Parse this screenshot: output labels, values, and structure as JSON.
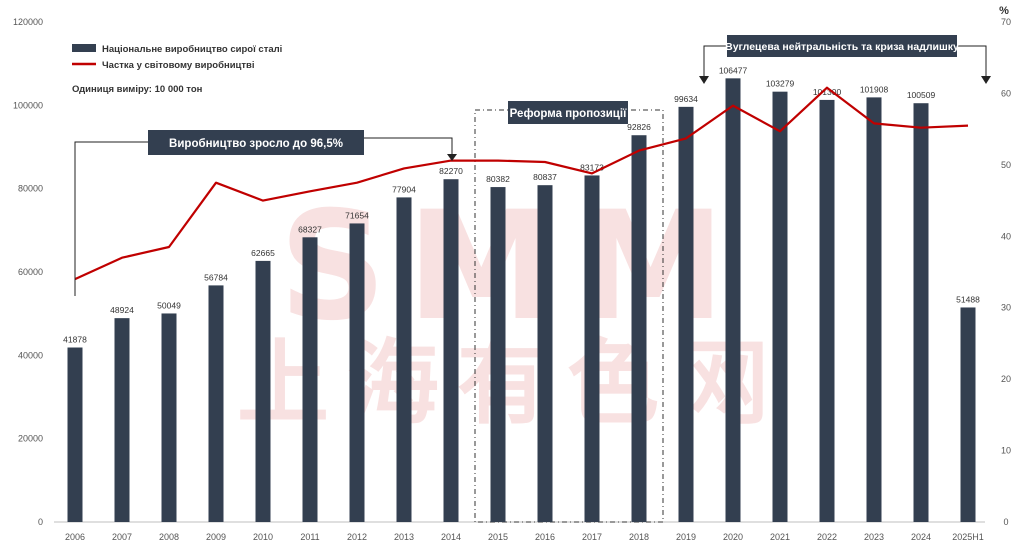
{
  "chart_data": {
    "type": "bar",
    "categories": [
      "2006",
      "2007",
      "2008",
      "2009",
      "2010",
      "2011",
      "2012",
      "2013",
      "2014",
      "2015",
      "2016",
      "2017",
      "2018",
      "2019",
      "2020",
      "2021",
      "2022",
      "2023",
      "2024",
      "2025H1"
    ],
    "series": [
      {
        "name": "Національне виробництво сирої сталі",
        "type": "bar",
        "color": "#333f50",
        "axis": "left",
        "values": [
          41878,
          48924,
          50049,
          56784,
          62665,
          68327,
          71654,
          77904,
          82270,
          80382,
          80837,
          83173,
          92826,
          99634,
          106477,
          103279,
          101300,
          101908,
          100509,
          51488
        ],
        "labels": [
          "41878",
          "48924",
          "50049",
          "56784",
          "62665",
          "68327",
          "71654",
          "77904",
          "82270",
          "80382",
          "80837",
          "83173",
          "92826",
          "99634",
          "106477",
          "103279",
          "101300",
          "101908",
          "100509",
          "51488"
        ]
      },
      {
        "name": "Частка у світовому виробництві",
        "type": "line",
        "color": "#c00000",
        "axis": "right",
        "values": [
          34,
          37,
          38.5,
          47.5,
          45,
          46.3,
          47.5,
          49.5,
          50.6,
          50.6,
          50.4,
          48.8,
          52,
          53.7,
          58.3,
          54.7,
          60.8,
          55.8,
          55.2,
          55.5
        ]
      }
    ],
    "y_left": {
      "min": 0,
      "max": 120000,
      "ticks": [
        "0",
        "20000",
        "40000",
        "60000",
        "80000",
        "100000",
        "120000"
      ]
    },
    "y_right": {
      "min": 0,
      "max": 70,
      "ticks": [
        "0",
        "10",
        "20",
        "30",
        "40",
        "50",
        "60",
        "70"
      ],
      "unit_label": "%"
    },
    "grid": false,
    "legend_position": "top-left",
    "unit_note": "Одиниця виміру: 10 000 тон",
    "annotations": {
      "production_callout": "Виробництво зросло до 96,5%",
      "reform_label": "Реформа пропозиції",
      "carbon_label": "Вуглецева нейтральність та криза надлишку"
    },
    "watermark": {
      "latin": "SMM",
      "chinese": "上海有色网"
    }
  }
}
